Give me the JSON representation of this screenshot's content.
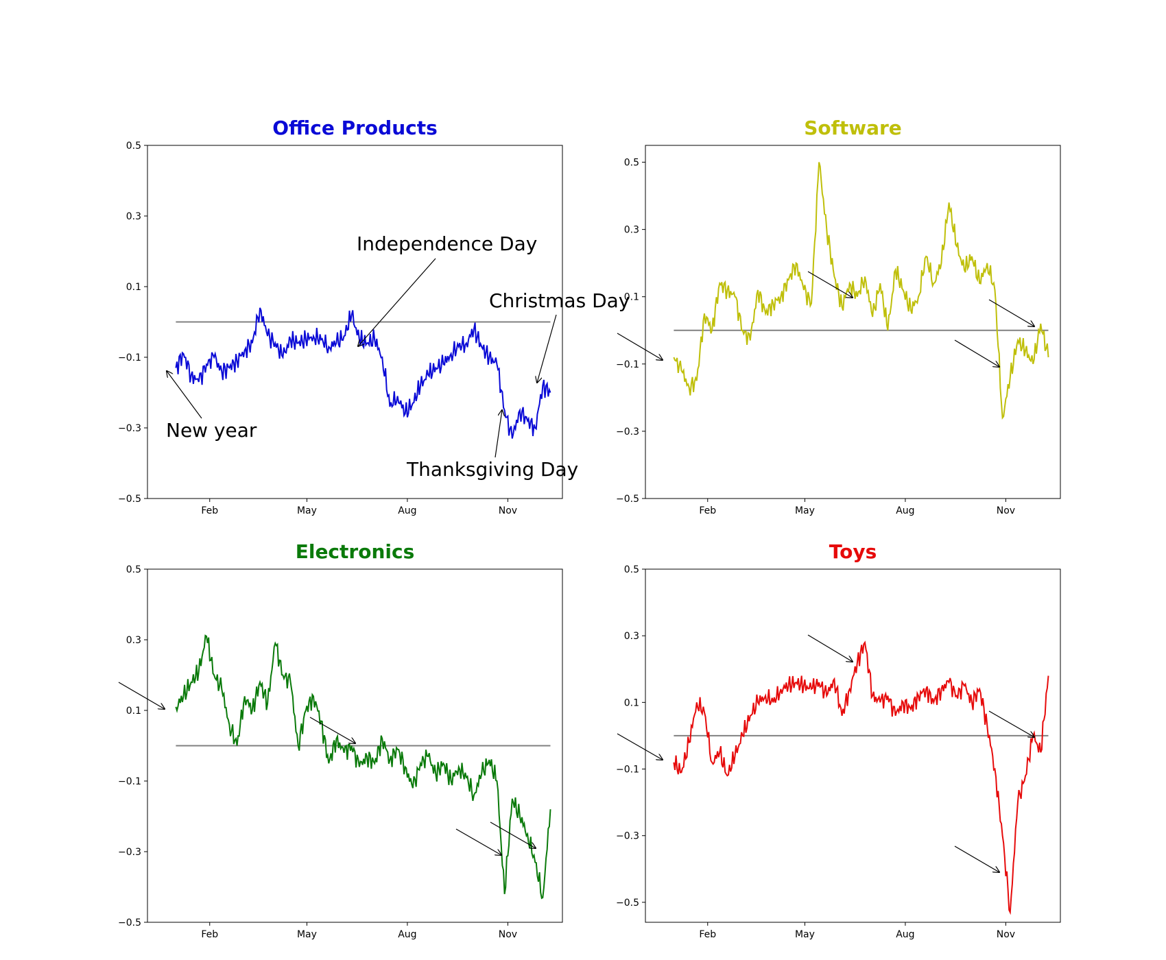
{
  "chart_data": [
    {
      "type": "line",
      "title": "Office Products",
      "color": "#0a0ad6",
      "xlabel": "",
      "ylabel": "",
      "xlim": [
        "2016-12-06",
        "2017-12-21"
      ],
      "ylim": [
        -0.5,
        0.5
      ],
      "yticks": [
        -0.5,
        -0.3,
        -0.1,
        0.1,
        0.3,
        0.5
      ],
      "yticklabels": [
        "−0.5",
        "−0.3",
        "−0.1",
        "0.1",
        "0.3",
        "0.5"
      ],
      "xticks": [
        "2017-02-01",
        "2017-05-01",
        "2017-08-01",
        "2017-11-01"
      ],
      "xticklabels": [
        "Feb",
        "May",
        "Aug",
        "Nov"
      ],
      "grid": false,
      "baseline": {
        "y": 0.0,
        "x": [
          "2017-01-01",
          "2017-12-10"
        ],
        "color": "#808080"
      },
      "series": [
        {
          "x": [
            "2017-01-01",
            "2017-01-08",
            "2017-01-15",
            "2017-01-22",
            "2017-01-29",
            "2017-02-05",
            "2017-02-12",
            "2017-02-19",
            "2017-02-26",
            "2017-03-05",
            "2017-03-12",
            "2017-03-19",
            "2017-03-26",
            "2017-04-02",
            "2017-04-09",
            "2017-04-16",
            "2017-04-23",
            "2017-04-30",
            "2017-05-07",
            "2017-05-14",
            "2017-05-21",
            "2017-05-28",
            "2017-06-04",
            "2017-06-11",
            "2017-06-18",
            "2017-06-25",
            "2017-07-02",
            "2017-07-09",
            "2017-07-16",
            "2017-07-23",
            "2017-07-30",
            "2017-08-06",
            "2017-08-13",
            "2017-08-20",
            "2017-08-27",
            "2017-09-03",
            "2017-09-10",
            "2017-09-17",
            "2017-09-24",
            "2017-10-01",
            "2017-10-08",
            "2017-10-15",
            "2017-10-22",
            "2017-10-29",
            "2017-11-05",
            "2017-11-12",
            "2017-11-19",
            "2017-11-26",
            "2017-12-03",
            "2017-12-10"
          ],
          "values": [
            -0.13,
            -0.09,
            -0.15,
            -0.17,
            -0.12,
            -0.1,
            -0.14,
            -0.13,
            -0.11,
            -0.08,
            -0.06,
            0.04,
            -0.04,
            -0.06,
            -0.1,
            -0.05,
            -0.06,
            -0.05,
            -0.04,
            -0.05,
            -0.07,
            -0.06,
            -0.04,
            0.02,
            -0.05,
            -0.06,
            -0.05,
            -0.1,
            -0.24,
            -0.21,
            -0.26,
            -0.23,
            -0.18,
            -0.15,
            -0.13,
            -0.12,
            -0.09,
            -0.07,
            -0.06,
            -0.02,
            -0.07,
            -0.1,
            -0.12,
            -0.25,
            -0.33,
            -0.25,
            -0.28,
            -0.3,
            -0.18,
            -0.2
          ]
        }
      ],
      "annotations": [
        {
          "text": "New year",
          "x": "2017-01-01"
        },
        {
          "text": "Independence Day",
          "x": "2017-07-04"
        },
        {
          "text": "Christmas Day",
          "x": "2017-12-25"
        },
        {
          "text": "Thanksgiving Day",
          "x": "2017-11-23"
        }
      ]
    },
    {
      "type": "line",
      "title": "Software",
      "color": "#bfbf0a",
      "xlabel": "",
      "ylabel": "",
      "xlim": [
        "2016-12-06",
        "2017-12-21"
      ],
      "ylim": [
        -0.5,
        0.55
      ],
      "yticks": [
        -0.5,
        -0.3,
        -0.1,
        0.1,
        0.3,
        0.5
      ],
      "yticklabels": [
        "−0.5",
        "−0.3",
        "−0.1",
        "0.1",
        "0.3",
        "0.5"
      ],
      "xticks": [
        "2017-02-01",
        "2017-05-01",
        "2017-08-01",
        "2017-11-01"
      ],
      "xticklabels": [
        "Feb",
        "May",
        "Aug",
        "Nov"
      ],
      "grid": false,
      "baseline": {
        "y": 0.0,
        "x": [
          "2017-01-01",
          "2017-12-10"
        ],
        "color": "#808080"
      },
      "series": [
        {
          "x": [
            "2017-01-01",
            "2017-01-08",
            "2017-01-15",
            "2017-01-22",
            "2017-01-29",
            "2017-02-05",
            "2017-02-12",
            "2017-02-19",
            "2017-02-26",
            "2017-03-05",
            "2017-03-12",
            "2017-03-19",
            "2017-03-26",
            "2017-04-02",
            "2017-04-09",
            "2017-04-16",
            "2017-04-23",
            "2017-04-30",
            "2017-05-07",
            "2017-05-14",
            "2017-05-21",
            "2017-05-28",
            "2017-06-04",
            "2017-06-11",
            "2017-06-18",
            "2017-06-25",
            "2017-07-02",
            "2017-07-09",
            "2017-07-16",
            "2017-07-23",
            "2017-07-30",
            "2017-08-06",
            "2017-08-13",
            "2017-08-20",
            "2017-08-27",
            "2017-09-03",
            "2017-09-10",
            "2017-09-17",
            "2017-09-24",
            "2017-10-01",
            "2017-10-08",
            "2017-10-15",
            "2017-10-22",
            "2017-10-29",
            "2017-11-05",
            "2017-11-12",
            "2017-11-19",
            "2017-11-26",
            "2017-12-03",
            "2017-12-10"
          ],
          "values": [
            -0.08,
            -0.12,
            -0.17,
            -0.15,
            0.05,
            0.0,
            0.14,
            0.12,
            0.1,
            0.0,
            -0.03,
            0.12,
            0.05,
            0.08,
            0.1,
            0.15,
            0.2,
            0.12,
            0.08,
            0.5,
            0.3,
            0.16,
            0.07,
            0.14,
            0.1,
            0.16,
            0.04,
            0.14,
            0.0,
            0.18,
            0.12,
            0.06,
            0.1,
            0.22,
            0.14,
            0.2,
            0.38,
            0.25,
            0.18,
            0.22,
            0.14,
            0.2,
            0.12,
            -0.26,
            -0.14,
            -0.03,
            -0.06,
            -0.1,
            0.02,
            -0.08
          ]
        }
      ],
      "annotations": []
    },
    {
      "type": "line",
      "title": "Electronics",
      "color": "#0a7a0a",
      "xlabel": "",
      "ylabel": "",
      "xlim": [
        "2016-12-06",
        "2017-12-21"
      ],
      "ylim": [
        -0.5,
        0.5
      ],
      "yticks": [
        -0.5,
        -0.3,
        -0.1,
        0.1,
        0.3,
        0.5
      ],
      "yticklabels": [
        "−0.5",
        "−0.3",
        "−0.1",
        "0.1",
        "0.3",
        "0.5"
      ],
      "xticks": [
        "2017-02-01",
        "2017-05-01",
        "2017-08-01",
        "2017-11-01"
      ],
      "xticklabels": [
        "Feb",
        "May",
        "Aug",
        "Nov"
      ],
      "grid": false,
      "baseline": {
        "y": 0.0,
        "x": [
          "2017-01-01",
          "2017-12-10"
        ],
        "color": "#808080"
      },
      "series": [
        {
          "x": [
            "2017-01-01",
            "2017-01-08",
            "2017-01-15",
            "2017-01-22",
            "2017-01-29",
            "2017-02-05",
            "2017-02-12",
            "2017-02-19",
            "2017-02-26",
            "2017-03-05",
            "2017-03-12",
            "2017-03-19",
            "2017-03-26",
            "2017-04-02",
            "2017-04-09",
            "2017-04-16",
            "2017-04-23",
            "2017-04-30",
            "2017-05-07",
            "2017-05-14",
            "2017-05-21",
            "2017-05-28",
            "2017-06-04",
            "2017-06-11",
            "2017-06-18",
            "2017-06-25",
            "2017-07-02",
            "2017-07-09",
            "2017-07-16",
            "2017-07-23",
            "2017-07-30",
            "2017-08-06",
            "2017-08-13",
            "2017-08-20",
            "2017-08-27",
            "2017-09-03",
            "2017-09-10",
            "2017-09-17",
            "2017-09-24",
            "2017-10-01",
            "2017-10-08",
            "2017-10-15",
            "2017-10-22",
            "2017-10-29",
            "2017-11-05",
            "2017-11-12",
            "2017-11-19",
            "2017-11-26",
            "2017-12-03",
            "2017-12-10"
          ],
          "values": [
            0.11,
            0.14,
            0.18,
            0.21,
            0.31,
            0.2,
            0.16,
            0.06,
            0.0,
            0.14,
            0.1,
            0.18,
            0.12,
            0.29,
            0.2,
            0.18,
            0.0,
            0.1,
            0.14,
            0.07,
            -0.05,
            0.02,
            -0.02,
            0.0,
            -0.06,
            -0.03,
            -0.05,
            0.02,
            -0.04,
            -0.01,
            -0.06,
            -0.12,
            -0.05,
            -0.03,
            -0.08,
            -0.05,
            -0.1,
            -0.06,
            -0.09,
            -0.14,
            -0.08,
            -0.04,
            -0.1,
            -0.42,
            -0.15,
            -0.2,
            -0.25,
            -0.33,
            -0.43,
            -0.18
          ]
        }
      ],
      "annotations": []
    },
    {
      "type": "line",
      "title": "Toys",
      "color": "#e60a0a",
      "xlabel": "",
      "ylabel": "",
      "xlim": [
        "2016-12-06",
        "2017-12-21"
      ],
      "ylim": [
        -0.56,
        0.5
      ],
      "yticks": [
        -0.5,
        -0.3,
        -0.1,
        0.1,
        0.3,
        0.5
      ],
      "yticklabels": [
        "−0.5",
        "−0.3",
        "−0.1",
        "0.1",
        "0.3",
        "0.5"
      ],
      "xticks": [
        "2017-02-01",
        "2017-05-01",
        "2017-08-01",
        "2017-11-01"
      ],
      "xticklabels": [
        "Feb",
        "May",
        "Aug",
        "Nov"
      ],
      "grid": false,
      "baseline": {
        "y": 0.0,
        "x": [
          "2017-01-01",
          "2017-12-10"
        ],
        "color": "#808080"
      },
      "series": [
        {
          "x": [
            "2017-01-01",
            "2017-01-08",
            "2017-01-15",
            "2017-01-22",
            "2017-01-29",
            "2017-02-05",
            "2017-02-12",
            "2017-02-19",
            "2017-02-26",
            "2017-03-05",
            "2017-03-12",
            "2017-03-19",
            "2017-03-26",
            "2017-04-02",
            "2017-04-09",
            "2017-04-16",
            "2017-04-23",
            "2017-04-30",
            "2017-05-07",
            "2017-05-14",
            "2017-05-21",
            "2017-05-28",
            "2017-06-04",
            "2017-06-11",
            "2017-06-18",
            "2017-06-25",
            "2017-07-02",
            "2017-07-09",
            "2017-07-16",
            "2017-07-23",
            "2017-07-30",
            "2017-08-06",
            "2017-08-13",
            "2017-08-20",
            "2017-08-27",
            "2017-09-03",
            "2017-09-10",
            "2017-09-17",
            "2017-09-24",
            "2017-10-01",
            "2017-10-08",
            "2017-10-15",
            "2017-10-22",
            "2017-10-29",
            "2017-11-05",
            "2017-11-12",
            "2017-11-19",
            "2017-11-26",
            "2017-12-03",
            "2017-12-10"
          ],
          "values": [
            -0.08,
            -0.11,
            -0.02,
            0.1,
            0.07,
            -0.08,
            -0.05,
            -0.12,
            -0.06,
            0.0,
            0.06,
            0.1,
            0.12,
            0.1,
            0.14,
            0.15,
            0.16,
            0.15,
            0.14,
            0.16,
            0.12,
            0.17,
            0.06,
            0.14,
            0.22,
            0.28,
            0.12,
            0.1,
            0.12,
            0.06,
            0.1,
            0.08,
            0.12,
            0.14,
            0.1,
            0.14,
            0.16,
            0.12,
            0.15,
            0.1,
            0.14,
            0.03,
            -0.1,
            -0.3,
            -0.53,
            -0.2,
            -0.12,
            0.0,
            -0.05,
            0.18
          ]
        }
      ],
      "annotations": []
    }
  ]
}
